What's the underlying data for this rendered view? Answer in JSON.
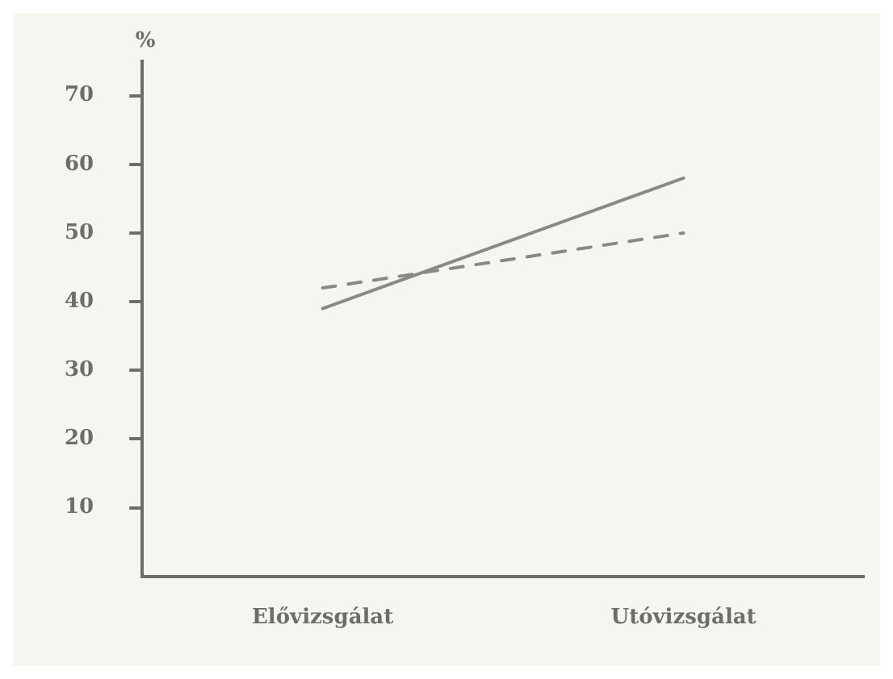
{
  "chart_data": {
    "type": "line",
    "ylabel": "%",
    "categories": [
      "Elővizsgálat",
      "Utóvizsgálat"
    ],
    "series": [
      {
        "color": "#8a8a84",
        "values": [
          39,
          58
        ],
        "line_style": "solid"
      },
      {
        "color": "#8a8a84",
        "values": [
          42,
          50
        ],
        "line_style": "dashed"
      }
    ],
    "ylim": [
      0,
      75
    ],
    "yticks": [
      10,
      20,
      30,
      40,
      50,
      60,
      70
    ],
    "grid": false,
    "legend": false,
    "marker": "none"
  }
}
